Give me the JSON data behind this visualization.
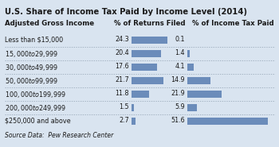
{
  "title": "U.S. Share of Income Tax Paid by Income Level (2014)",
  "source": "Source Data:  Pew Research Center",
  "col1_header": "Adjusted Gross Income",
  "col2_header": "% of Returns Filed",
  "col3_header": "% of Income Tax Paid",
  "categories": [
    "Less than $15,000",
    "$15,000 to $29,999",
    "$30,000 to $49,999",
    "$50,000 to $99,999",
    "$100,000 to $199,999",
    "$200,000 to $249,999",
    "$250,000 and above"
  ],
  "returns_filed": [
    24.3,
    20.4,
    17.6,
    21.7,
    11.8,
    1.5,
    2.7
  ],
  "income_tax_paid": [
    0.1,
    1.4,
    4.1,
    14.9,
    21.9,
    5.9,
    51.6
  ],
  "bar_color": "#6b8cba",
  "bg_color": "#d9e4f0",
  "text_color": "#1a1a1a",
  "title_fontsize": 7.2,
  "header_fontsize": 6.2,
  "label_fontsize": 5.8,
  "source_fontsize": 5.5,
  "bar_max_returns": 30.0,
  "bar_max_income": 55.0,
  "fig_width": 3.5,
  "fig_height": 1.85
}
